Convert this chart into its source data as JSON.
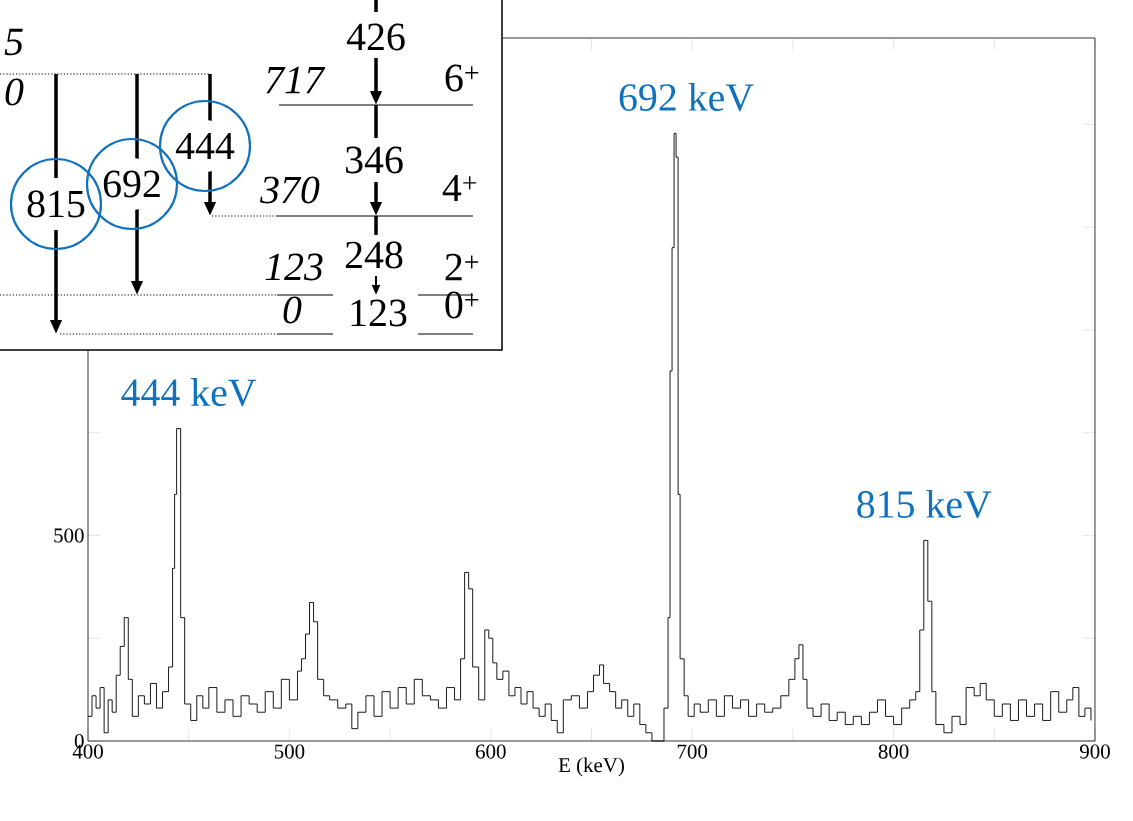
{
  "chart_data": {
    "type": "step",
    "xlabel": "E (keV)",
    "color": "#000000",
    "xlim": [
      400,
      900
    ],
    "ylim": [
      0,
      1710
    ],
    "xticks": [
      400,
      {
        "value": 450,
        "label": null
      },
      500,
      {
        "value": 550,
        "label": null
      },
      600,
      {
        "value": 650,
        "label": null
      },
      700,
      {
        "value": 750,
        "label": null
      },
      800,
      {
        "value": 850,
        "label": null
      },
      900
    ],
    "yticks": [
      0,
      {
        "value": 250,
        "label": null
      },
      500,
      {
        "value": 750,
        "label": null
      },
      {
        "value": 1000,
        "label": null
      },
      {
        "value": 1250,
        "label": null
      },
      {
        "value": 1500,
        "label": null
      }
    ],
    "marker": "none",
    "x": [
      400,
      402,
      404,
      406,
      408,
      410,
      412,
      414,
      416,
      418,
      420,
      422,
      425,
      428,
      431,
      434,
      437,
      440,
      442,
      443,
      444,
      446,
      448,
      451,
      454,
      457,
      460,
      464,
      468,
      472,
      476,
      480,
      484,
      488,
      492,
      496,
      500,
      504,
      506,
      508,
      510,
      512,
      514,
      517,
      520,
      524,
      528,
      531,
      534,
      538,
      542,
      546,
      550,
      554,
      558,
      562,
      566,
      570,
      574,
      578,
      582,
      585,
      587,
      589,
      591,
      594,
      597,
      599,
      601,
      603,
      606,
      609,
      612,
      615,
      618,
      621,
      624,
      627,
      630,
      633,
      636,
      640,
      644,
      648,
      651,
      654,
      656,
      659,
      662,
      665,
      668,
      671,
      674,
      677,
      680,
      684,
      686,
      688,
      689,
      690,
      691,
      692,
      693,
      694,
      696,
      698,
      701,
      704,
      708,
      712,
      716,
      720,
      724,
      728,
      732,
      736,
      740,
      744,
      748,
      751,
      753,
      755,
      757,
      760,
      764,
      768,
      772,
      776,
      780,
      784,
      788,
      792,
      796,
      800,
      804,
      808,
      811,
      813,
      815,
      817,
      819,
      821,
      825,
      829,
      833,
      836,
      840,
      843,
      846,
      850,
      854,
      858,
      862,
      866,
      870,
      874,
      878,
      882,
      886,
      889,
      892,
      895,
      898
    ],
    "values": [
      60,
      110,
      80,
      130,
      20,
      100,
      70,
      160,
      230,
      300,
      150,
      60,
      110,
      90,
      140,
      80,
      120,
      180,
      420,
      600,
      760,
      300,
      90,
      50,
      110,
      80,
      130,
      70,
      100,
      60,
      110,
      90,
      70,
      120,
      80,
      150,
      100,
      170,
      200,
      260,
      337,
      290,
      150,
      110,
      100,
      80,
      90,
      30,
      70,
      110,
      60,
      120,
      80,
      130,
      90,
      150,
      110,
      100,
      80,
      130,
      100,
      200,
      410,
      370,
      180,
      100,
      270,
      250,
      190,
      150,
      170,
      110,
      130,
      90,
      120,
      80,
      60,
      90,
      50,
      20,
      100,
      110,
      80,
      120,
      160,
      185,
      140,
      120,
      80,
      100,
      60,
      90,
      40,
      20,
      0,
      0,
      80,
      300,
      900,
      1200,
      1478,
      1420,
      600,
      200,
      110,
      60,
      90,
      70,
      100,
      60,
      110,
      80,
      100,
      60,
      90,
      70,
      80,
      110,
      150,
      200,
      234,
      150,
      80,
      60,
      90,
      50,
      70,
      40,
      60,
      40,
      70,
      100,
      60,
      40,
      80,
      100,
      120,
      270,
      488,
      340,
      120,
      40,
      20,
      60,
      40,
      130,
      110,
      140,
      100,
      60,
      90,
      50,
      100,
      60,
      90,
      50,
      120,
      70,
      100,
      130,
      60,
      80,
      50
    ],
    "annotations": [
      {
        "text": "444 keV",
        "x": 444,
        "y": 760
      },
      {
        "text": "692 keV",
        "x": 692,
        "y": 1478
      },
      {
        "text": "815 keV",
        "x": 815,
        "y": 488
      },
      "5",
      "0",
      "426",
      "717",
      "6$^{+}$",
      "346",
      "370",
      "4$^{+}$",
      "123",
      "248",
      "2$^{+}$",
      "0",
      "123",
      "0$^{+}$",
      "815",
      "692",
      "444"
    ]
  }
}
